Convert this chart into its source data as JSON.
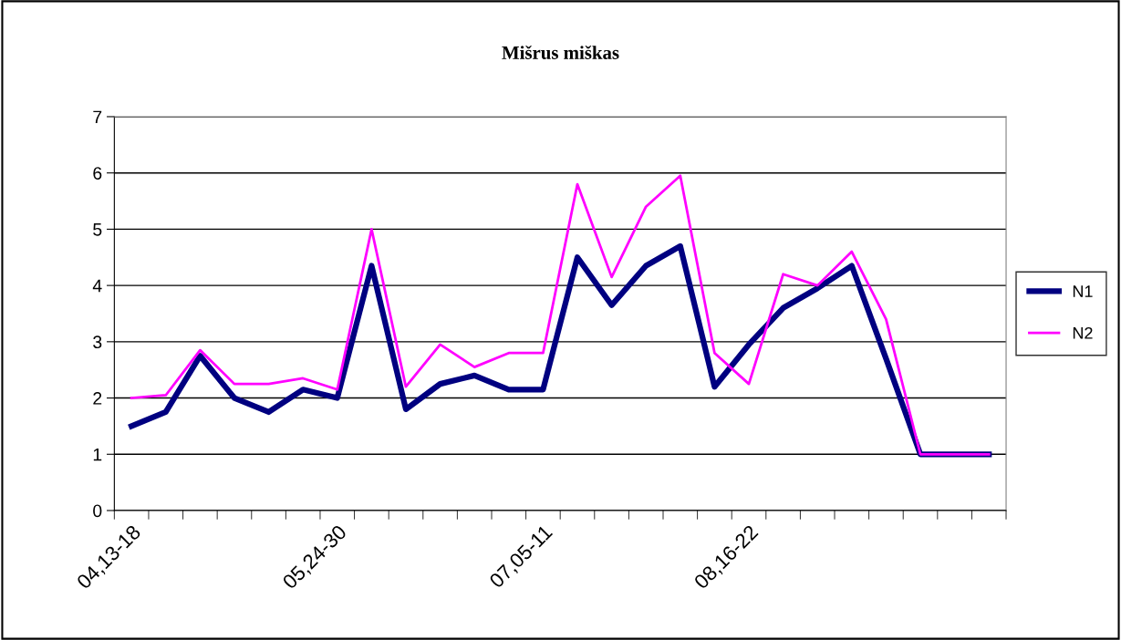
{
  "chart_data": {
    "type": "line",
    "title": "Mišrus miškas",
    "categories": [
      "04,13-18",
      null,
      null,
      null,
      null,
      null,
      "05,24-30",
      null,
      null,
      null,
      null,
      null,
      "07,05-11",
      null,
      null,
      null,
      null,
      null,
      "08,16-22",
      null,
      null,
      null,
      null,
      null,
      null,
      null
    ],
    "series": [
      {
        "name": "N1",
        "color": "#000080",
        "values": [
          1.5,
          1.75,
          2.75,
          2.0,
          1.75,
          2.15,
          2.0,
          4.35,
          1.8,
          2.25,
          2.4,
          2.15,
          2.15,
          4.5,
          3.65,
          4.35,
          4.7,
          2.2,
          2.95,
          3.6,
          3.95,
          4.35,
          2.7,
          1.0,
          1.0,
          1.0
        ]
      },
      {
        "name": "N2",
        "color": "#ff00ff",
        "values": [
          2.0,
          2.05,
          2.85,
          2.25,
          2.25,
          2.35,
          2.15,
          5.0,
          2.2,
          2.95,
          2.55,
          2.8,
          2.8,
          5.8,
          4.15,
          5.4,
          5.95,
          2.8,
          2.25,
          4.2,
          4.0,
          4.6,
          3.4,
          1.0,
          1.0,
          1.0
        ]
      }
    ],
    "ylim": [
      0,
      7
    ],
    "yticks": [
      0,
      1,
      2,
      3,
      4,
      5,
      6,
      7
    ],
    "grid": "y",
    "legend": "right",
    "marker": "none",
    "line_style": "solid"
  }
}
